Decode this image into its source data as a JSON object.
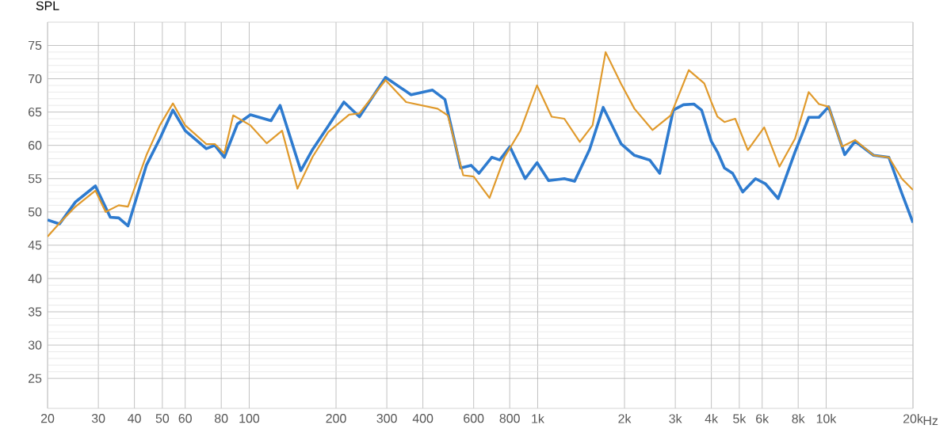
{
  "chart_data": {
    "type": "line",
    "ylabel": "SPL",
    "xlabel": "Hz",
    "log": "x",
    "grid": true,
    "marker": "none",
    "line_style": "solid",
    "xlim": [
      20,
      20000
    ],
    "ylim": [
      20.5,
      78.5
    ],
    "xticks": [
      20,
      30,
      40,
      50,
      60,
      80,
      100,
      200,
      300,
      400,
      600,
      800,
      {
        "value": 1000,
        "label": "1k"
      },
      {
        "value": 2000,
        "label": "2k"
      },
      {
        "value": 3000,
        "label": "3k"
      },
      {
        "value": 4000,
        "label": "4k"
      },
      {
        "value": 5000,
        "label": "5k"
      },
      {
        "value": 6000,
        "label": "6k"
      },
      {
        "value": 8000,
        "label": "8k"
      },
      {
        "value": 10000,
        "label": "10k"
      },
      {
        "value": 20000,
        "label": "20k"
      }
    ],
    "yticks": [
      25,
      30,
      35,
      40,
      45,
      50,
      55,
      60,
      65,
      70,
      75
    ],
    "series": [
      {
        "color": "#2e7bcf",
        "x": [
          20,
          22,
          25,
          29.3,
          33,
          35.3,
          38,
          44,
          49,
          54.4,
          60,
          71,
          76,
          82,
          91,
          101,
          119,
          128,
          151,
          166,
          188,
          213,
          241,
          297,
          364,
          432,
          477,
          541,
          588,
          626,
          693,
          739,
          801,
          905,
          995,
          1091,
          1237,
          1343,
          1514,
          1687,
          1948,
          2165,
          2445,
          2648,
          2952,
          3200,
          3480,
          3700,
          4000,
          4200,
          4440,
          4740,
          5140,
          5690,
          6170,
          6820,
          7800,
          8700,
          9440,
          10200,
          11600,
          12600,
          14600,
          16500,
          18300,
          20000
        ],
        "values": [
          48.8,
          48.2,
          51.5,
          53.9,
          49.2,
          49.1,
          47.9,
          57,
          61,
          65.3,
          62.2,
          59.5,
          60,
          58.2,
          63.2,
          64.6,
          63.7,
          66,
          56.2,
          59.4,
          62.9,
          66.5,
          64.3,
          70.2,
          67.6,
          68.3,
          66.9,
          56.6,
          57,
          55.8,
          58.2,
          57.8,
          59.8,
          55,
          57.4,
          54.7,
          55,
          54.6,
          59.4,
          65.7,
          60.2,
          58.5,
          57.8,
          55.8,
          65.3,
          66.1,
          66.2,
          65.3,
          60.6,
          59,
          56.6,
          55.8,
          53,
          55,
          54.2,
          52,
          59,
          64.2,
          64.2,
          65.8,
          58.6,
          60.6,
          58.5,
          58.2,
          52.8,
          48.4
        ]
      },
      {
        "color": "#e09a2c",
        "x": [
          20,
          22,
          25,
          29.3,
          31.8,
          35.3,
          38,
          44,
          49,
          54.4,
          60,
          71,
          76,
          82,
          88,
          101,
          115,
          130,
          147,
          166,
          188,
          222,
          241,
          297,
          350,
          450,
          488,
          552,
          600,
          681,
          767,
          871,
          995,
          1118,
          1237,
          1400,
          1550,
          1720,
          1948,
          2165,
          2500,
          2890,
          3340,
          3780,
          4000,
          4200,
          4440,
          4840,
          5350,
          6100,
          6890,
          7800,
          8700,
          9440,
          10200,
          11350,
          12600,
          14600,
          16500,
          18300,
          20000
        ],
        "values": [
          46.3,
          48.3,
          50.8,
          53.2,
          50,
          51,
          50.8,
          58.5,
          63,
          66.3,
          63,
          60.2,
          60.2,
          58.8,
          64.5,
          63,
          60.3,
          62.2,
          53.5,
          58.3,
          62,
          64.6,
          64.8,
          69.8,
          66.5,
          65.5,
          64.5,
          55.5,
          55.3,
          52.1,
          58.2,
          62.2,
          69,
          64.3,
          64,
          60.5,
          63,
          74,
          69.2,
          65.5,
          62.3,
          64.5,
          71.3,
          69.3,
          66.5,
          64.3,
          63.5,
          64,
          59.3,
          62.7,
          56.8,
          61,
          68,
          66.2,
          65.8,
          59.8,
          60.8,
          58.5,
          58.2,
          55,
          53.3
        ]
      }
    ]
  }
}
